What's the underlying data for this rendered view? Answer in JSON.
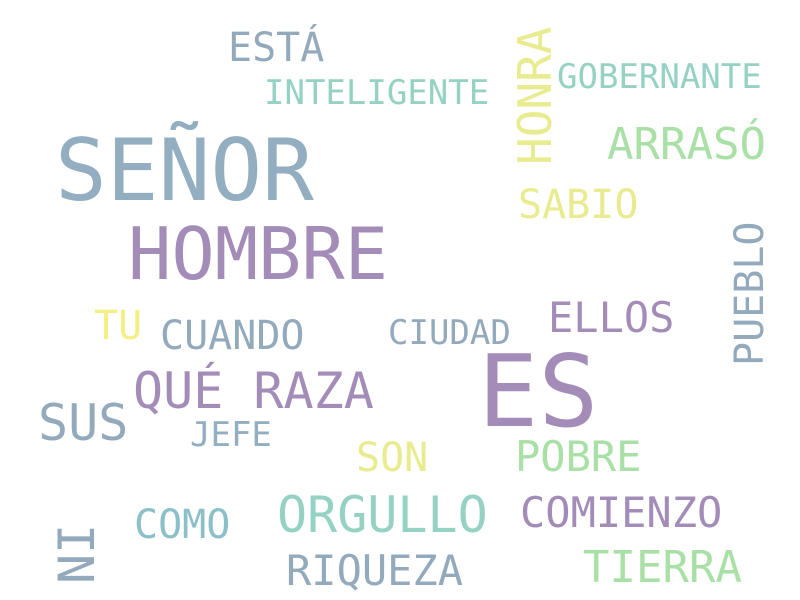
{
  "word_cloud": {
    "words": [
      {
        "id": "senor",
        "text": "SEÑOR",
        "color": "#92aec0",
        "orientation": "horizontal"
      },
      {
        "id": "hombre",
        "text": "HOMBRE",
        "color": "#a38db8",
        "orientation": "horizontal"
      },
      {
        "id": "es",
        "text": "ES",
        "color": "#a38db8",
        "orientation": "horizontal"
      },
      {
        "id": "esta",
        "text": "ESTÁ",
        "color": "#93a9bc",
        "orientation": "horizontal"
      },
      {
        "id": "inteligente",
        "text": "INTELIGENTE",
        "color": "#95d2c4",
        "orientation": "horizontal"
      },
      {
        "id": "gobernante",
        "text": "GOBERNANTE",
        "color": "#95d2c4",
        "orientation": "horizontal"
      },
      {
        "id": "honra",
        "text": "HONRA",
        "color": "#e8ec8f",
        "orientation": "vertical"
      },
      {
        "id": "arraso",
        "text": "ARRASÓ",
        "color": "#a9e0a6",
        "orientation": "horizontal"
      },
      {
        "id": "sabio",
        "text": "SABIO",
        "color": "#e8ec8f",
        "orientation": "horizontal"
      },
      {
        "id": "pueblo",
        "text": "PUEBLO",
        "color": "#93a9bc",
        "orientation": "vertical"
      },
      {
        "id": "ellos",
        "text": "ELLOS",
        "color": "#a38db8",
        "orientation": "horizontal"
      },
      {
        "id": "ciudad",
        "text": "CIUDAD",
        "color": "#93a9bc",
        "orientation": "horizontal"
      },
      {
        "id": "tu",
        "text": "TU",
        "color": "#f3ef85",
        "orientation": "horizontal"
      },
      {
        "id": "cuando",
        "text": "CUANDO",
        "color": "#93a9bc",
        "orientation": "horizontal"
      },
      {
        "id": "que_raza",
        "text": "QUÉ RAZA",
        "color": "#a38db8",
        "orientation": "horizontal"
      },
      {
        "id": "sus",
        "text": "SUS",
        "color": "#93a9bc",
        "orientation": "horizontal"
      },
      {
        "id": "jefe",
        "text": "JEFE",
        "color": "#92aec0",
        "orientation": "horizontal"
      },
      {
        "id": "son",
        "text": "SON",
        "color": "#e8ec8f",
        "orientation": "horizontal"
      },
      {
        "id": "pobre",
        "text": "POBRE",
        "color": "#a9e0a6",
        "orientation": "horizontal"
      },
      {
        "id": "orgullo",
        "text": "ORGULLO",
        "color": "#95d2c4",
        "orientation": "horizontal"
      },
      {
        "id": "comienzo",
        "text": "COMIENZO",
        "color": "#a38db8",
        "orientation": "horizontal"
      },
      {
        "id": "como",
        "text": "COMO",
        "color": "#8cc0c8",
        "orientation": "horizontal"
      },
      {
        "id": "ni",
        "text": "NI",
        "color": "#93a9bc",
        "orientation": "vertical"
      },
      {
        "id": "riqueza",
        "text": "RIQUEZA",
        "color": "#93a9bc",
        "orientation": "horizontal"
      },
      {
        "id": "tierra",
        "text": "TIERRA",
        "color": "#a9e0a6",
        "orientation": "horizontal"
      }
    ]
  }
}
